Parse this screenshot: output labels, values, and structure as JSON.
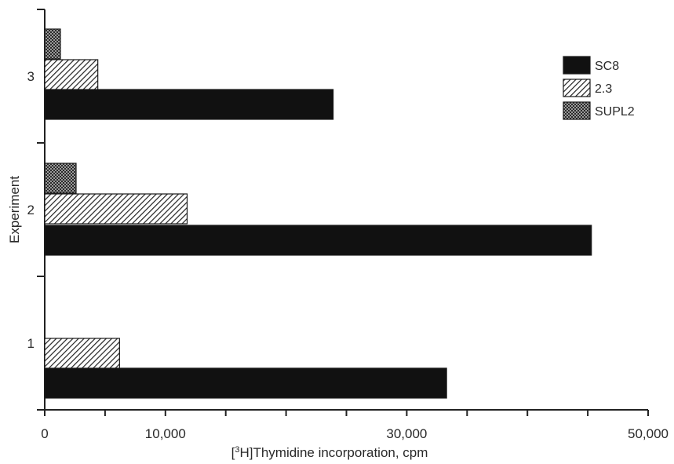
{
  "chart_data": {
    "type": "bar",
    "orientation": "horizontal",
    "title": "",
    "xlabel": "Thymidine incorporation, cpm",
    "xlabel_prefix": "[",
    "xlabel_sup": "3",
    "xlabel_element": "H]",
    "ylabel": "Experiment",
    "categories": [
      "1",
      "2",
      "3"
    ],
    "xlim": [
      0,
      50000
    ],
    "x_ticks": [
      0,
      10000,
      30000,
      50000
    ],
    "x_tick_labels": [
      "0",
      "10,000",
      "30,000",
      "50,000"
    ],
    "x_minor_ticks": [
      5000,
      15000,
      20000,
      25000,
      35000,
      40000,
      45000
    ],
    "grid": false,
    "legend_position": "top-right",
    "series": [
      {
        "name": "SC8",
        "pattern": "solid",
        "color": "#111111",
        "values": [
          33300,
          45300,
          23900
        ]
      },
      {
        "name": "2.3",
        "pattern": "diagonal-hatch",
        "color": "#333333",
        "values": [
          6200,
          11800,
          4400
        ]
      },
      {
        "name": "SUPL2",
        "pattern": "crosshatch",
        "color": "#444444",
        "values": [
          0,
          2600,
          1300
        ]
      }
    ]
  }
}
